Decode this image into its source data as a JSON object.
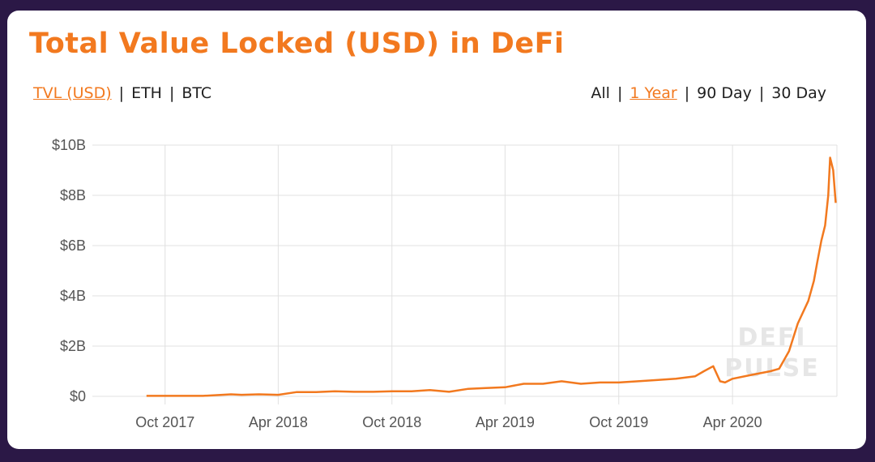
{
  "title": "Total Value Locked (USD) in DeFi",
  "metric_tabs": [
    {
      "label": "TVL (USD)",
      "active": true
    },
    {
      "label": "ETH",
      "active": false
    },
    {
      "label": "BTC",
      "active": false
    }
  ],
  "range_tabs": [
    {
      "label": "All",
      "active": false
    },
    {
      "label": "1 Year",
      "active": true
    },
    {
      "label": "90 Day",
      "active": false
    },
    {
      "label": "30 Day",
      "active": false
    }
  ],
  "separator": "|",
  "watermark": {
    "line1": "DEFI",
    "line2": "PULSE"
  },
  "colors": {
    "accent": "#f2791f",
    "background": "#2b1846",
    "card": "#ffffff",
    "grid": "#e0e0e0"
  },
  "chart_data": {
    "type": "line",
    "title": "Total Value Locked (USD) in DeFi",
    "xlabel": "",
    "ylabel": "",
    "x_tick_labels": [
      "Oct 2017",
      "Apr 2018",
      "Oct 2018",
      "Apr 2019",
      "Oct 2019",
      "Apr 2020"
    ],
    "y_tick_labels": [
      "$0",
      "$2B",
      "$4B",
      "$6B",
      "$8B",
      "$10B"
    ],
    "ylim": [
      0,
      10
    ],
    "y_unit": "billion USD",
    "grid": true,
    "legend": "none",
    "series": [
      {
        "color": "#f2791f",
        "x": [
          "2017-09-01",
          "2017-10-01",
          "2017-11-01",
          "2017-12-01",
          "2018-01-01",
          "2018-01-15",
          "2018-02-01",
          "2018-03-01",
          "2018-04-01",
          "2018-05-01",
          "2018-06-01",
          "2018-07-01",
          "2018-08-01",
          "2018-09-01",
          "2018-10-01",
          "2018-11-01",
          "2018-12-01",
          "2019-01-01",
          "2019-02-01",
          "2019-03-01",
          "2019-04-01",
          "2019-05-01",
          "2019-06-01",
          "2019-07-01",
          "2019-08-01",
          "2019-09-01",
          "2019-10-01",
          "2019-11-01",
          "2019-12-01",
          "2020-01-01",
          "2020-02-01",
          "2020-02-15",
          "2020-03-01",
          "2020-03-12",
          "2020-03-20",
          "2020-04-01",
          "2020-05-01",
          "2020-06-01",
          "2020-06-15",
          "2020-07-01",
          "2020-07-15",
          "2020-08-01",
          "2020-08-10",
          "2020-08-15",
          "2020-08-22",
          "2020-08-28",
          "2020-09-02",
          "2020-09-05",
          "2020-09-10",
          "2020-09-14"
        ],
        "y": [
          0.02,
          0.02,
          0.02,
          0.02,
          0.06,
          0.08,
          0.06,
          0.08,
          0.06,
          0.17,
          0.17,
          0.2,
          0.18,
          0.18,
          0.2,
          0.2,
          0.25,
          0.18,
          0.3,
          0.33,
          0.36,
          0.5,
          0.5,
          0.6,
          0.5,
          0.55,
          0.55,
          0.6,
          0.65,
          0.7,
          0.8,
          1.0,
          1.2,
          0.6,
          0.55,
          0.7,
          0.85,
          1.0,
          1.1,
          1.8,
          2.9,
          3.8,
          4.6,
          5.3,
          6.2,
          6.8,
          8.0,
          9.5,
          9.0,
          7.7
        ]
      }
    ]
  }
}
